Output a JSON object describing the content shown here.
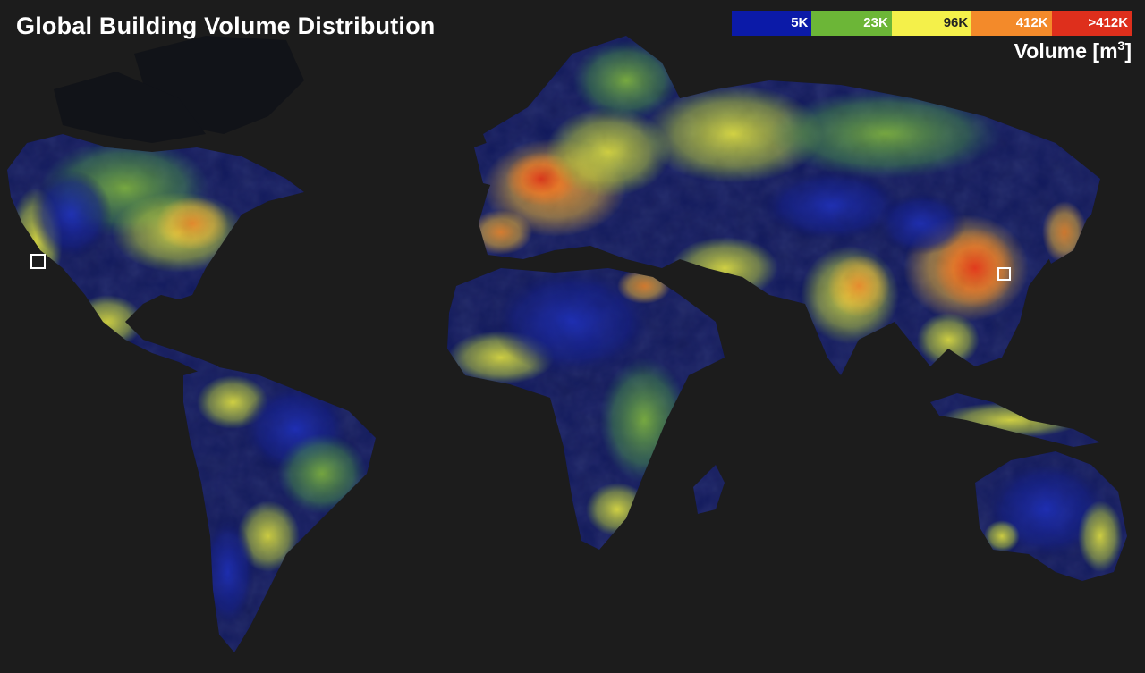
{
  "title": "Global Building Volume Distribution",
  "legend": {
    "unit_prefix": "Volume [m",
    "unit_exponent": "3",
    "unit_suffix": "]",
    "classes": [
      {
        "label": "5K",
        "color": "#0b1aa8",
        "text_color": "#ffffff"
      },
      {
        "label": "23K",
        "color": "#6cb637",
        "text_color": "#ffffff"
      },
      {
        "label": "96K",
        "color": "#f4f04a",
        "text_color": "#222222"
      },
      {
        "label": "412K",
        "color": "#f38a2a",
        "text_color": "#ffffff"
      },
      {
        "label": ">412K",
        "color": "#de2f1c",
        "text_color": "#ffffff"
      }
    ]
  },
  "map": {
    "background_color": "#1c1c1c",
    "landmass_color": "#0d0f1f",
    "colors": {
      "blue": "#1e2fb4",
      "green": "#7bc23a",
      "yellow": "#e6e83c",
      "orange": "#f28a2c",
      "red": "#e23a1e"
    },
    "markers": [
      {
        "name": "west-coast-usa-marker"
      },
      {
        "name": "east-china-marker"
      }
    ]
  }
}
